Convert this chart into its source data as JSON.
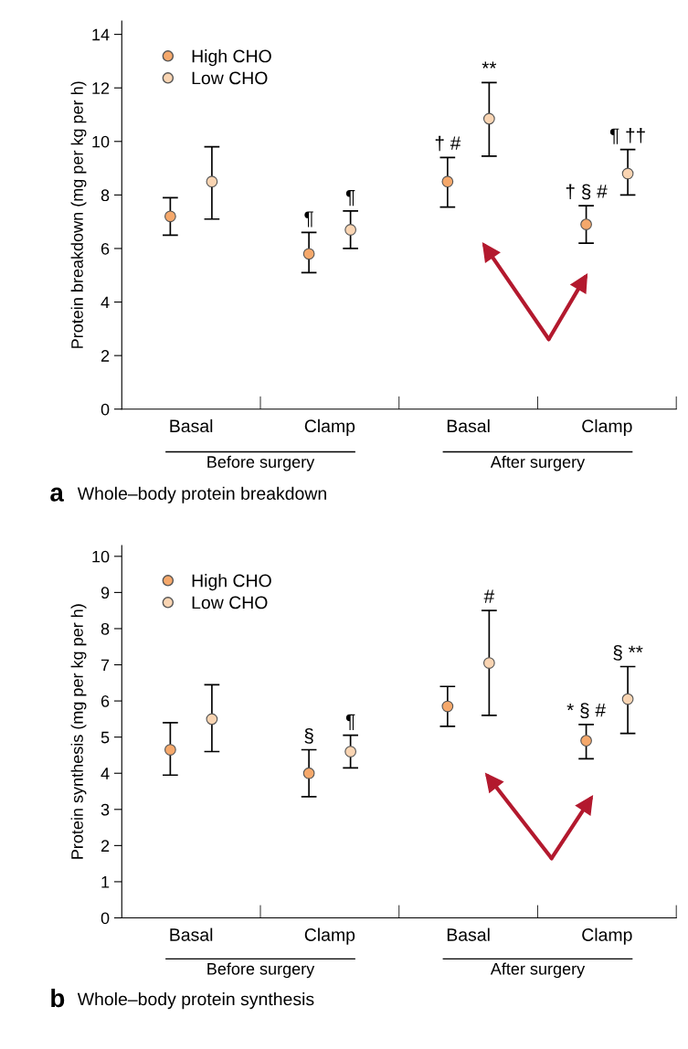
{
  "chart_data": [
    {
      "type": "scatter",
      "title": "Whole–body protein breakdown",
      "ylabel": "Protein breakdown (mg per kg per h)",
      "categories": [
        "Basal",
        "Clamp",
        "Basal",
        "Clamp"
      ],
      "series": [
        {
          "name": "High CHO",
          "color": "#f5a86b",
          "values": [
            7.2,
            5.8,
            8.5,
            6.9
          ],
          "errors": [
            [
              6.5,
              7.9
            ],
            [
              5.1,
              6.6
            ],
            [
              7.55,
              9.4
            ],
            [
              6.2,
              7.6
            ]
          ],
          "value_labels": [
            null,
            "¶",
            "† #",
            "† § #"
          ]
        },
        {
          "name": "Low CHO",
          "color": "#f9d4b2",
          "values": [
            8.5,
            6.7,
            10.85,
            8.8
          ],
          "errors": [
            [
              7.1,
              9.8
            ],
            [
              6.0,
              7.4
            ],
            [
              9.45,
              12.2
            ],
            [
              8.0,
              9.7
            ]
          ],
          "value_labels": [
            null,
            "¶",
            "**",
            "¶ ††"
          ]
        }
      ],
      "annotations": [
        "Before surgery",
        "After surgery",
        "a"
      ],
      "ylim": [
        0,
        14.5
      ],
      "yticks": [
        0,
        2,
        4,
        6,
        8,
        10,
        12,
        14
      ],
      "marker": "circle",
      "legend": "top left",
      "grid": false
    },
    {
      "type": "scatter",
      "title": "Whole–body protein synthesis",
      "ylabel": "Protein synthesis (mg per kg per h)",
      "categories": [
        "Basal",
        "Clamp",
        "Basal",
        "Clamp"
      ],
      "series": [
        {
          "name": "High CHO",
          "color": "#f5a86b",
          "values": [
            4.65,
            4.0,
            5.85,
            4.9
          ],
          "errors": [
            [
              3.95,
              5.4
            ],
            [
              3.35,
              4.65
            ],
            [
              5.3,
              6.4
            ],
            [
              4.4,
              5.35
            ]
          ],
          "value_labels": [
            null,
            "§",
            null,
            "* § #"
          ]
        },
        {
          "name": "Low CHO",
          "color": "#f9d4b2",
          "values": [
            5.5,
            4.6,
            7.05,
            6.05
          ],
          "errors": [
            [
              4.6,
              6.45
            ],
            [
              4.15,
              5.05
            ],
            [
              5.6,
              8.5
            ],
            [
              5.1,
              6.95
            ]
          ],
          "value_labels": [
            null,
            "¶",
            "#",
            "§ **"
          ]
        }
      ],
      "annotations": [
        "Before surgery",
        "After surgery",
        "b"
      ],
      "ylim": [
        0,
        10.3
      ],
      "yticks": [
        0,
        1,
        2,
        3,
        4,
        5,
        6,
        7,
        8,
        9,
        10
      ],
      "marker": "circle",
      "legend": "top left",
      "grid": false
    }
  ]
}
